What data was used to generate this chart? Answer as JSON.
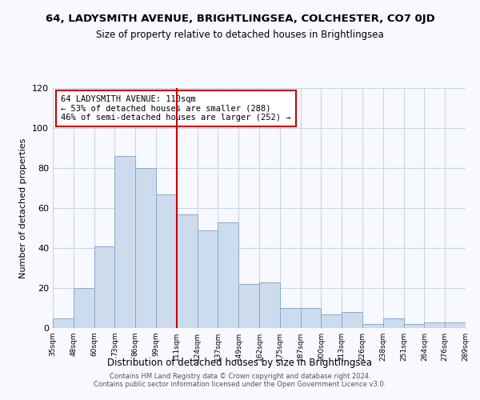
{
  "title": "64, LADYSMITH AVENUE, BRIGHTLINGSEA, COLCHESTER, CO7 0JD",
  "subtitle": "Size of property relative to detached houses in Brightlingsea",
  "xlabel": "Distribution of detached houses by size in Brightlingsea",
  "ylabel": "Number of detached properties",
  "categories": [
    "35sqm",
    "48sqm",
    "60sqm",
    "73sqm",
    "86sqm",
    "99sqm",
    "111sqm",
    "124sqm",
    "137sqm",
    "149sqm",
    "162sqm",
    "175sqm",
    "187sqm",
    "200sqm",
    "213sqm",
    "226sqm",
    "238sqm",
    "251sqm",
    "264sqm",
    "276sqm",
    "289sqm"
  ],
  "values": [
    5,
    20,
    41,
    86,
    80,
    67,
    57,
    49,
    53,
    22,
    23,
    10,
    10,
    7,
    8,
    2,
    5,
    2,
    3,
    3,
    0
  ],
  "bar_color": "#ccdcec",
  "bar_edge_color": "#88aacc",
  "reference_line_index": 6,
  "reference_line_color": "#cc0000",
  "annotation_title": "64 LADYSMITH AVENUE: 110sqm",
  "annotation_line1": "← 53% of detached houses are smaller (288)",
  "annotation_line2": "46% of semi-detached houses are larger (252) →",
  "annotation_box_edge_color": "#cc0000",
  "ylim": [
    0,
    120
  ],
  "yticks": [
    0,
    20,
    40,
    60,
    80,
    100,
    120
  ],
  "footer_line1": "Contains HM Land Registry data © Crown copyright and database right 2024.",
  "footer_line2": "Contains public sector information licensed under the Open Government Licence v3.0.",
  "background_color": "#f8f8ff",
  "grid_color": "#c8d4e4"
}
